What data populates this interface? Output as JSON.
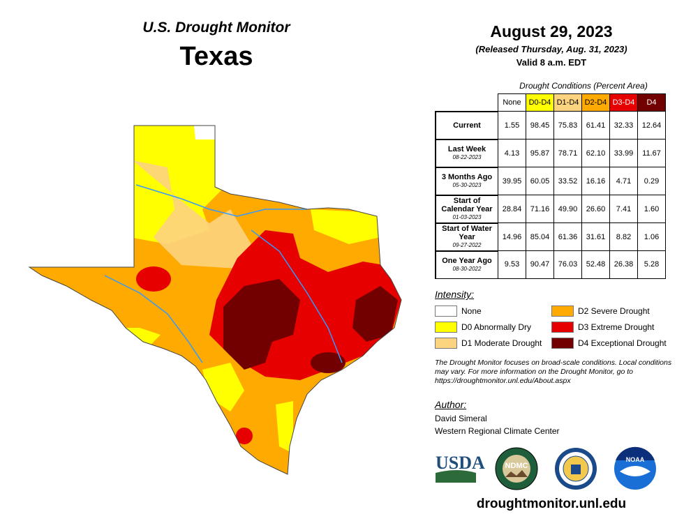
{
  "header": {
    "subtitle": "U.S. Drought Monitor",
    "title": "Texas",
    "date": "August 29, 2023",
    "released": "(Released Thursday, Aug. 31, 2023)",
    "valid": "Valid 8 a.m. EDT"
  },
  "table": {
    "caption": "Drought Conditions (Percent Area)",
    "columns": [
      "None",
      "D0-D4",
      "D1-D4",
      "D2-D4",
      "D3-D4",
      "D4"
    ],
    "rows": [
      {
        "label": "Current",
        "date": "",
        "values": [
          "1.55",
          "98.45",
          "75.83",
          "61.41",
          "32.33",
          "12.64"
        ]
      },
      {
        "label": "Last Week",
        "date": "08-22-2023",
        "values": [
          "4.13",
          "95.87",
          "78.71",
          "62.10",
          "33.99",
          "11.67"
        ]
      },
      {
        "label": "3 Months Ago",
        "date": "05-30-2023",
        "values": [
          "39.95",
          "60.05",
          "33.52",
          "16.16",
          "4.71",
          "0.29"
        ]
      },
      {
        "label": "Start of Calendar Year",
        "date": "01-03-2023",
        "values": [
          "28.84",
          "71.16",
          "49.90",
          "26.60",
          "7.41",
          "1.60"
        ]
      },
      {
        "label": "Start of Water Year",
        "date": "09-27-2022",
        "values": [
          "14.96",
          "85.04",
          "61.36",
          "31.61",
          "8.82",
          "1.06"
        ]
      },
      {
        "label": "One Year Ago",
        "date": "08-30-2022",
        "values": [
          "9.53",
          "90.47",
          "76.03",
          "52.48",
          "26.38",
          "5.28"
        ]
      }
    ]
  },
  "legend": {
    "title": "Intensity:",
    "items": [
      {
        "label": "None",
        "color": "#ffffff"
      },
      {
        "label": "D0 Abnormally Dry",
        "color": "#ffff00"
      },
      {
        "label": "D1 Moderate Drought",
        "color": "#fcd37f"
      },
      {
        "label": "D2 Severe Drought",
        "color": "#ffaa00"
      },
      {
        "label": "D3 Extreme Drought",
        "color": "#e60000"
      },
      {
        "label": "D4 Exceptional Drought",
        "color": "#730000"
      }
    ]
  },
  "note": "The Drought Monitor focuses on broad-scale conditions. Local conditions may vary. For more information on the Drought Monitor, go to https://droughtmonitor.unl.edu/About.aspx",
  "author": {
    "title": "Author:",
    "name": "David Simeral",
    "org": "Western Regional Climate Center"
  },
  "logos": {
    "usda": "USDA",
    "ndmc": "NDMC",
    "noaa": "NOAA"
  },
  "footer_url": "droughtmonitor.unl.edu"
}
